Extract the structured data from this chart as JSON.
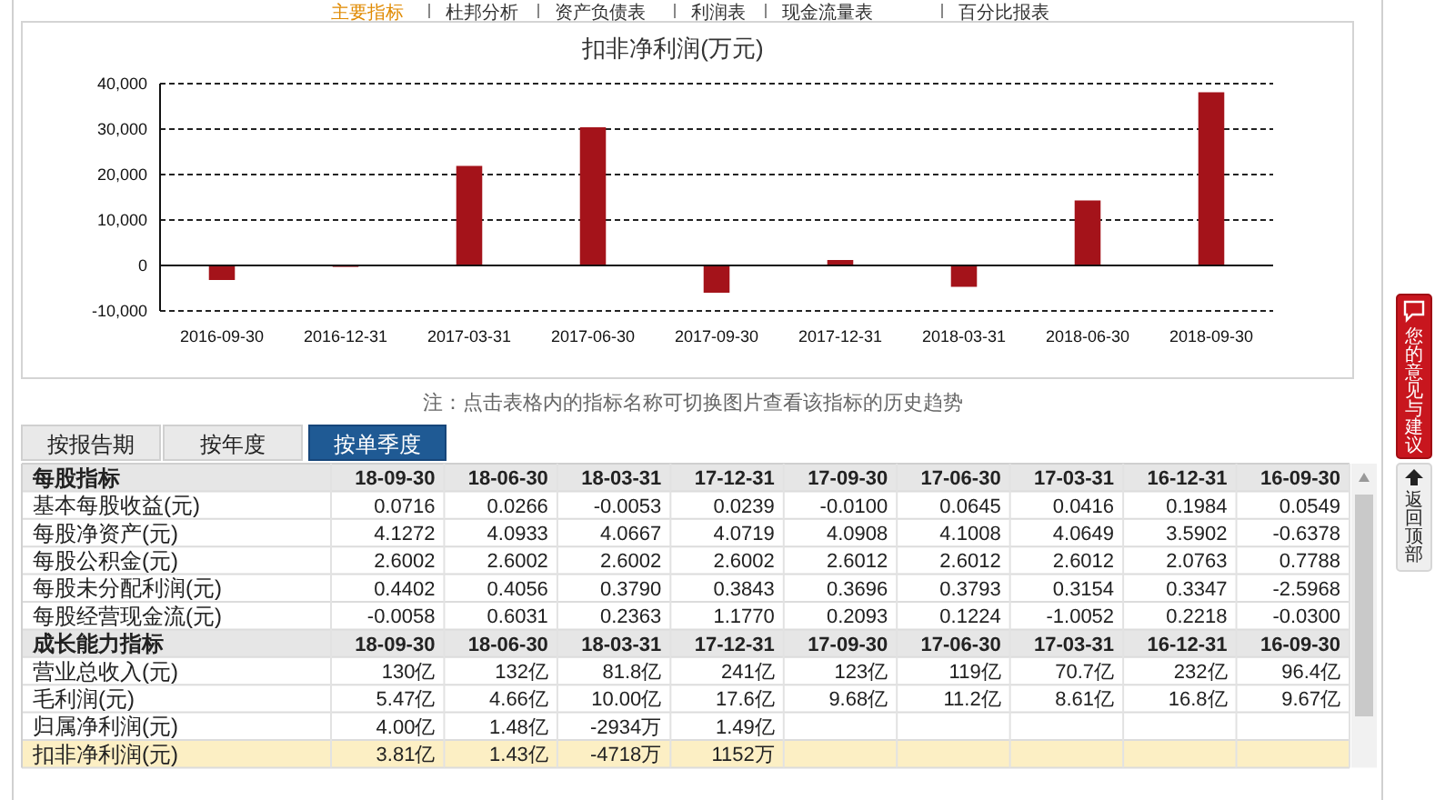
{
  "chart_data": [
    {
      "type": "bar",
      "title": "扣非净利润(万元)",
      "categories": [
        "2016-09-30",
        "2016-12-31",
        "2017-03-31",
        "2017-06-30",
        "2017-09-30",
        "2017-12-31",
        "2018-03-31",
        "2018-06-30",
        "2018-09-30"
      ],
      "values": [
        -3200,
        -200,
        21900,
        30400,
        -6000,
        1200,
        -4700,
        14300,
        38100
      ],
      "color": "#a4131a",
      "ylim": [
        -10000,
        40000
      ],
      "yticks": [
        {
          "value": -10000,
          "label": "-10,000"
        },
        0,
        {
          "value": 10000,
          "label": "10,000"
        },
        {
          "value": 20000,
          "label": "20,000"
        },
        {
          "value": 30000,
          "label": "30,000"
        },
        {
          "value": 40000,
          "label": "40,000"
        }
      ],
      "grid": "y",
      "annotations": [
        "注：点击表格内的指标名称可切换图片查看该指标的历史趋势"
      ]
    },
    {
      "type": "other",
      "y_categories": [
        "每股指标",
        "基本每股收益(元)",
        "每股净资产(元)",
        "每股公积金(元)",
        "每股未分配利润(元)",
        "每股经营现金流(元)",
        "成长能力指标",
        "营业总收入(元)",
        "毛利润(元)",
        "归属净利润(元)",
        "扣非净利润(元)"
      ],
      "cell_labels": [
        [
          "18-09-30",
          "18-06-30",
          "18-03-31",
          "17-12-31",
          "17-09-30",
          "17-06-30",
          "17-03-31",
          "16-12-31",
          "16-09-30"
        ],
        [
          "0.0716",
          "0.0266",
          "-0.0053",
          "0.0239",
          "-0.0100",
          "0.0645",
          "0.0416",
          "0.1984",
          "0.0549"
        ],
        [
          "4.1272",
          "4.0933",
          "4.0667",
          "4.0719",
          "4.0908",
          "4.1008",
          "4.0649",
          "3.5902",
          "-0.6378"
        ],
        [
          "2.6002",
          "2.6002",
          "2.6002",
          "2.6002",
          "2.6012",
          "2.6012",
          "2.6012",
          "2.0763",
          "0.7788"
        ],
        [
          "0.4402",
          "0.4056",
          "0.3790",
          "0.3843",
          "0.3696",
          "0.3793",
          "0.3154",
          "0.3347",
          "-2.5968"
        ],
        [
          "-0.0058",
          "0.6031",
          "0.2363",
          "1.1770",
          "0.2093",
          "0.1224",
          "-1.0052",
          "0.2218",
          "-0.0300"
        ],
        [
          "18-09-30",
          "18-06-30",
          "18-03-31",
          "17-12-31",
          "17-09-30",
          "17-06-30",
          "17-03-31",
          "16-12-31",
          "16-09-30"
        ],
        [
          "130亿",
          "132亿",
          "81.8亿",
          "241亿",
          "123亿",
          "119亿",
          "70.7亿",
          "232亿",
          "96.4亿"
        ],
        [
          "5.47亿",
          "4.66亿",
          "10.00亿",
          "17.6亿",
          "9.68亿",
          "11.2亿",
          "8.61亿",
          "16.8亿",
          "9.67亿"
        ],
        [
          "4.00亿",
          "1.48亿",
          "-2934万",
          "1.49亿",
          null,
          null,
          null,
          null,
          null
        ],
        [
          "3.81亿",
          "1.43亿",
          "-4718万",
          "1152万",
          null,
          null,
          null,
          null,
          null
        ]
      ],
      "annotations": [
        "主要指标",
        "杜邦分析",
        "资产负债表",
        "利润表",
        "现金流量表",
        "百分比报表",
        "按报告期",
        "按年度",
        "按单季度",
        "您的意见与建议",
        "返回顶部"
      ]
    }
  ]
}
